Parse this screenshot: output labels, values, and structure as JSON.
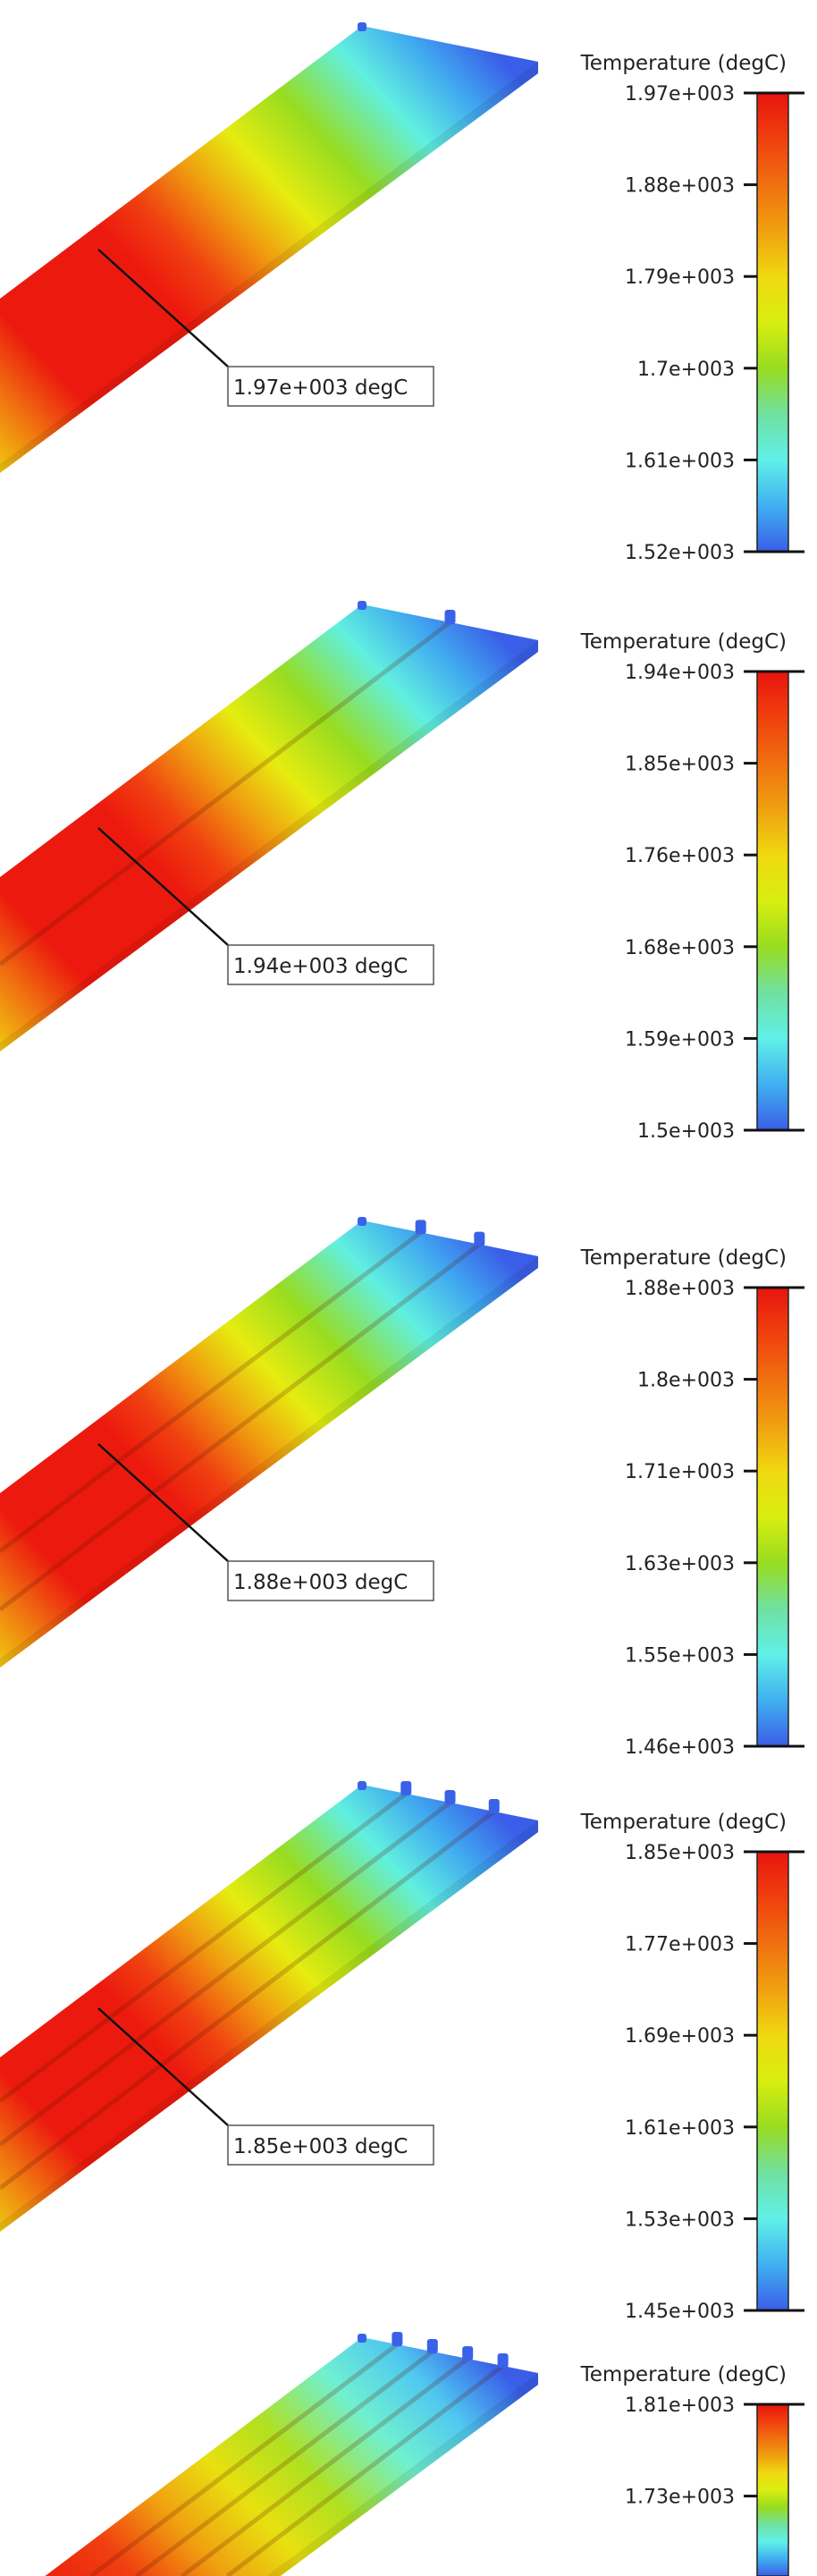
{
  "chart_data": [
    {
      "type": "heatmap",
      "title": "Temperature (degC)",
      "colorbar_range": [
        1520,
        1970
      ],
      "colorbar_ticks": [
        "1.97e+003",
        "1.88e+003",
        "1.79e+003",
        "1.7e+003",
        "1.61e+003",
        "1.52e+003"
      ],
      "probe_label": "1.97e+003 degC",
      "probe_value": 1970
    },
    {
      "type": "heatmap",
      "title": "Temperature (degC)",
      "colorbar_range": [
        1500,
        1940
      ],
      "colorbar_ticks": [
        "1.94e+003",
        "1.85e+003",
        "1.76e+003",
        "1.68e+003",
        "1.59e+003",
        "1.5e+003"
      ],
      "probe_label": "1.94e+003 degC",
      "probe_value": 1940
    },
    {
      "type": "heatmap",
      "title": "Temperature (degC)",
      "colorbar_range": [
        1460,
        1880
      ],
      "colorbar_ticks": [
        "1.88e+003",
        "1.8e+003",
        "1.71e+003",
        "1.63e+003",
        "1.55e+003",
        "1.46e+003"
      ],
      "probe_label": "1.88e+003 degC",
      "probe_value": 1880
    },
    {
      "type": "heatmap",
      "title": "Temperature (degC)",
      "colorbar_range": [
        1450,
        1850
      ],
      "colorbar_ticks": [
        "1.85e+003",
        "1.77e+003",
        "1.69e+003",
        "1.61e+003",
        "1.53e+003",
        "1.45e+003"
      ],
      "probe_label": "1.85e+003 degC",
      "probe_value": 1850
    },
    {
      "type": "heatmap",
      "title": "Temperature (degC)",
      "colorbar_ticks": [
        "1.81e+003",
        "1.73e+003"
      ],
      "probe_label": ""
    }
  ],
  "colormap": [
    "#e8140e",
    "#f0400e",
    "#f07010",
    "#f0a010",
    "#f0d810",
    "#d8ee10",
    "#98dc20",
    "#70e0a0",
    "#60f0e8",
    "#40b0f0",
    "#3a5ee8"
  ]
}
